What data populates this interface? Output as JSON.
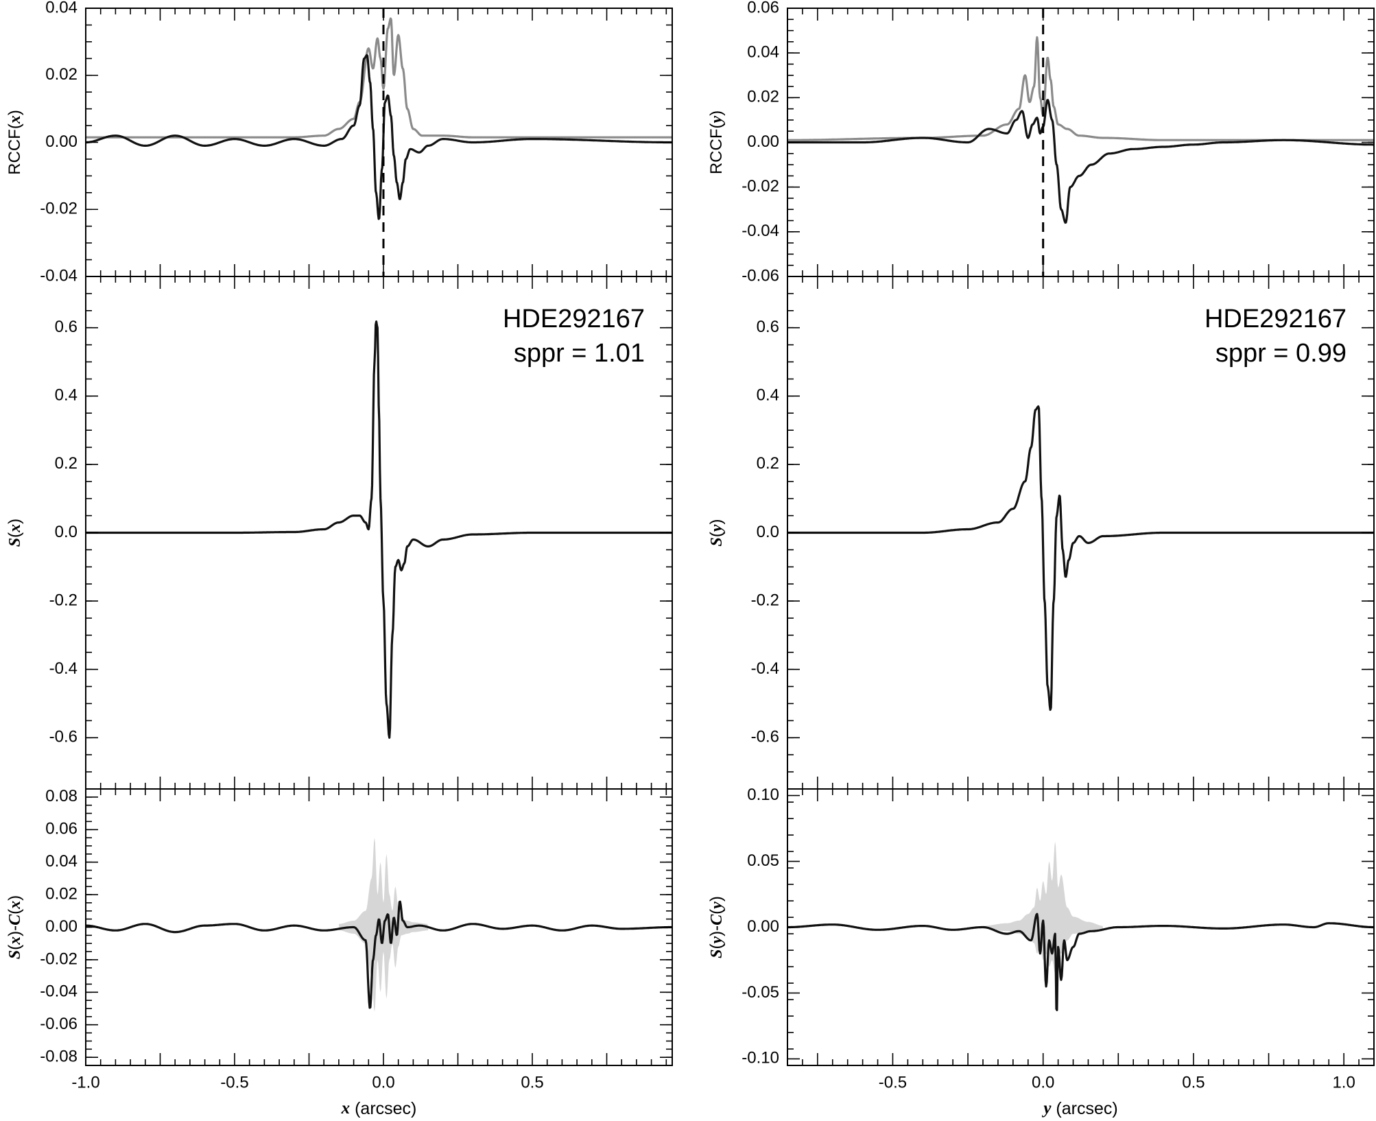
{
  "chart_data": [
    {
      "id": "left-top",
      "type": "line",
      "ylabel": "RCCF(x)",
      "xlim": [
        -1.0,
        0.97
      ],
      "ylim": [
        -0.04,
        0.04
      ],
      "yticks": [
        -0.04,
        -0.02,
        0.0,
        0.02,
        0.04
      ],
      "ytick_labels": [
        "-0.04",
        "-0.02",
        "0.00",
        "0.02",
        "0.04"
      ],
      "vline_x": 0.0,
      "series": [
        {
          "style": "gray",
          "x": [
            -1.0,
            -0.6,
            -0.3,
            -0.2,
            -0.15,
            -0.1,
            -0.08,
            -0.05,
            -0.035,
            -0.02,
            -0.01,
            0.0,
            0.015,
            0.025,
            0.035,
            0.05,
            0.065,
            0.08,
            0.1,
            0.13,
            0.2,
            0.3,
            0.6,
            0.97
          ],
          "y": [
            0.0015,
            0.0015,
            0.0015,
            0.002,
            0.004,
            0.007,
            0.012,
            0.028,
            0.022,
            0.031,
            0.025,
            0.016,
            0.034,
            0.037,
            0.02,
            0.032,
            0.022,
            0.01,
            0.004,
            0.002,
            0.002,
            0.0015,
            0.0015,
            0.0015
          ]
        },
        {
          "style": "black",
          "x": [
            -1.0,
            -0.9,
            -0.8,
            -0.7,
            -0.6,
            -0.5,
            -0.4,
            -0.3,
            -0.2,
            -0.14,
            -0.1,
            -0.08,
            -0.065,
            -0.055,
            -0.045,
            -0.035,
            -0.025,
            -0.015,
            -0.005,
            0.005,
            0.015,
            0.025,
            0.035,
            0.045,
            0.055,
            0.065,
            0.075,
            0.09,
            0.12,
            0.15,
            0.2,
            0.3,
            0.5,
            0.97
          ],
          "y": [
            0.0,
            0.002,
            -0.001,
            0.002,
            -0.001,
            0.001,
            -0.001,
            0.001,
            -0.001,
            0.001,
            0.005,
            0.011,
            0.025,
            0.026,
            0.018,
            0.004,
            -0.015,
            -0.023,
            -0.008,
            0.012,
            0.014,
            0.008,
            -0.004,
            -0.012,
            -0.017,
            -0.012,
            -0.005,
            -0.002,
            -0.003,
            -0.001,
            0.001,
            0.0,
            0.001,
            0.0
          ]
        }
      ]
    },
    {
      "id": "left-mid",
      "type": "line",
      "ylabel": "S(x)",
      "xlim": [
        -1.0,
        0.97
      ],
      "ylim": [
        -0.75,
        0.75
      ],
      "yticks": [
        -0.6,
        -0.4,
        -0.2,
        0.0,
        0.2,
        0.4,
        0.6
      ],
      "ytick_labels": [
        "-0.6",
        "-0.4",
        "-0.2",
        "0.0",
        "0.2",
        "0.4",
        "0.6"
      ],
      "annotation": [
        "HDE292167",
        "sppr = 1.01"
      ],
      "series": [
        {
          "style": "black",
          "x": [
            -1.0,
            -0.5,
            -0.3,
            -0.2,
            -0.15,
            -0.1,
            -0.08,
            -0.06,
            -0.05,
            -0.04,
            -0.03,
            -0.025,
            -0.02,
            -0.015,
            -0.01,
            0.0,
            0.01,
            0.02,
            0.03,
            0.04,
            0.05,
            0.06,
            0.07,
            0.08,
            0.1,
            0.15,
            0.2,
            0.3,
            0.5,
            0.97
          ],
          "y": [
            0.0,
            0.0,
            0.002,
            0.01,
            0.03,
            0.05,
            0.05,
            0.03,
            0.01,
            0.1,
            0.5,
            0.62,
            0.6,
            0.35,
            0.1,
            -0.2,
            -0.5,
            -0.6,
            -0.3,
            -0.1,
            -0.08,
            -0.11,
            -0.09,
            -0.04,
            -0.02,
            -0.04,
            -0.02,
            -0.005,
            0.0,
            0.0
          ]
        }
      ]
    },
    {
      "id": "left-bot",
      "type": "line",
      "ylabel": "S(x)-C(x)",
      "xlabel": "x (arcsec)",
      "xlim": [
        -1.0,
        0.97
      ],
      "ylim": [
        -0.085,
        0.085
      ],
      "yticks": [
        -0.08,
        -0.06,
        -0.04,
        -0.02,
        0.0,
        0.02,
        0.04,
        0.06,
        0.08
      ],
      "ytick_labels": [
        "-0.08",
        "-0.06",
        "-0.04",
        "-0.02",
        "0.00",
        "0.02",
        "0.04",
        "0.06",
        "0.08"
      ],
      "xticks": [
        -1.0,
        -0.5,
        0.0,
        0.5
      ],
      "xtick_labels": [
        "-1.0",
        "-0.5",
        "0.0",
        "0.5"
      ],
      "band": {
        "x": [
          -0.15,
          -0.1,
          -0.06,
          -0.04,
          -0.03,
          -0.02,
          -0.01,
          0.0,
          0.01,
          0.02,
          0.03,
          0.04,
          0.05,
          0.06,
          0.08,
          0.1,
          0.15
        ],
        "upper": [
          0.002,
          0.004,
          0.01,
          0.03,
          0.055,
          0.02,
          0.04,
          0.015,
          0.045,
          0.02,
          0.01,
          0.025,
          0.012,
          0.005,
          0.004,
          0.003,
          0.002
        ],
        "lower": [
          -0.002,
          -0.004,
          -0.01,
          -0.03,
          -0.052,
          -0.02,
          -0.04,
          -0.015,
          -0.044,
          -0.02,
          -0.01,
          -0.025,
          -0.012,
          -0.005,
          -0.004,
          -0.003,
          -0.002
        ]
      },
      "series": [
        {
          "style": "black",
          "x": [
            -1.0,
            -0.9,
            -0.8,
            -0.7,
            -0.6,
            -0.5,
            -0.4,
            -0.3,
            -0.2,
            -0.1,
            -0.06,
            -0.045,
            -0.035,
            -0.025,
            -0.015,
            -0.005,
            0.005,
            0.015,
            0.025,
            0.035,
            0.045,
            0.055,
            0.065,
            0.08,
            0.12,
            0.2,
            0.3,
            0.4,
            0.5,
            0.6,
            0.7,
            0.8,
            0.97
          ],
          "y": [
            0.001,
            -0.002,
            0.002,
            -0.003,
            0.001,
            0.002,
            -0.002,
            0.001,
            -0.002,
            0.0,
            -0.008,
            -0.05,
            -0.02,
            -0.005,
            0.005,
            -0.01,
            0.004,
            0.008,
            -0.01,
            0.006,
            -0.005,
            0.016,
            0.004,
            0.0,
            0.001,
            -0.002,
            0.002,
            -0.001,
            0.001,
            -0.002,
            0.001,
            -0.001,
            0.0
          ]
        }
      ]
    },
    {
      "id": "right-top",
      "type": "line",
      "ylabel": "RCCF(y)",
      "xlim": [
        -0.85,
        1.1
      ],
      "ylim": [
        -0.06,
        0.06
      ],
      "yticks": [
        -0.06,
        -0.04,
        -0.02,
        0.0,
        0.02,
        0.04,
        0.06
      ],
      "ytick_labels": [
        "-0.06",
        "-0.04",
        "-0.02",
        "0.00",
        "0.02",
        "0.04",
        "0.06"
      ],
      "vline_x": 0.0,
      "series": [
        {
          "style": "gray",
          "x": [
            -0.85,
            -0.4,
            -0.2,
            -0.12,
            -0.08,
            -0.06,
            -0.045,
            -0.03,
            -0.02,
            -0.01,
            0.0,
            0.015,
            0.025,
            0.035,
            0.05,
            0.08,
            0.12,
            0.2,
            0.4,
            1.1
          ],
          "y": [
            0.001,
            0.002,
            0.003,
            0.008,
            0.015,
            0.03,
            0.018,
            0.025,
            0.047,
            0.02,
            0.012,
            0.038,
            0.028,
            0.016,
            0.008,
            0.006,
            0.003,
            0.002,
            0.001,
            0.001
          ]
        },
        {
          "style": "black",
          "x": [
            -0.85,
            -0.6,
            -0.4,
            -0.25,
            -0.18,
            -0.12,
            -0.09,
            -0.07,
            -0.05,
            -0.035,
            -0.02,
            -0.01,
            0.0,
            0.015,
            0.03,
            0.045,
            0.06,
            0.075,
            0.09,
            0.12,
            0.16,
            0.22,
            0.3,
            0.4,
            0.5,
            0.6,
            0.8,
            1.1
          ],
          "y": [
            0.0,
            0.0,
            0.002,
            0.0,
            0.006,
            0.004,
            0.01,
            0.014,
            0.002,
            0.008,
            0.011,
            0.004,
            0.007,
            0.019,
            0.01,
            -0.01,
            -0.03,
            -0.036,
            -0.02,
            -0.015,
            -0.01,
            -0.005,
            -0.003,
            -0.002,
            -0.001,
            0.0,
            0.001,
            -0.001
          ]
        }
      ]
    },
    {
      "id": "right-mid",
      "type": "line",
      "ylabel": "S(y)",
      "xlim": [
        -0.85,
        1.1
      ],
      "ylim": [
        -0.75,
        0.75
      ],
      "yticks": [
        -0.6,
        -0.4,
        -0.2,
        0.0,
        0.2,
        0.4,
        0.6
      ],
      "ytick_labels": [
        "-0.6",
        "-0.4",
        "-0.2",
        "0.0",
        "0.2",
        "0.4",
        "0.6"
      ],
      "annotation": [
        "HDE292167",
        "sppr = 0.99"
      ],
      "series": [
        {
          "style": "black",
          "x": [
            -0.85,
            -0.4,
            -0.25,
            -0.15,
            -0.1,
            -0.06,
            -0.04,
            -0.025,
            -0.015,
            -0.005,
            0.005,
            0.015,
            0.025,
            0.035,
            0.045,
            0.055,
            0.065,
            0.075,
            0.085,
            0.1,
            0.12,
            0.15,
            0.2,
            0.4,
            1.1
          ],
          "y": [
            0.0,
            0.0,
            0.01,
            0.03,
            0.07,
            0.15,
            0.25,
            0.36,
            0.37,
            0.1,
            -0.2,
            -0.45,
            -0.52,
            -0.2,
            0.05,
            0.11,
            -0.05,
            -0.13,
            -0.08,
            -0.03,
            -0.01,
            -0.03,
            -0.01,
            0.0,
            0.0
          ]
        }
      ]
    },
    {
      "id": "right-bot",
      "type": "line",
      "ylabel": "S(y)-C(y)",
      "xlabel": "y (arcsec)",
      "xlim": [
        -0.85,
        1.1
      ],
      "ylim": [
        -0.105,
        0.105
      ],
      "yticks": [
        -0.1,
        -0.05,
        0.0,
        0.05,
        0.1
      ],
      "ytick_labels": [
        "-0.10",
        "-0.05",
        "0.00",
        "0.05",
        "0.10"
      ],
      "xticks": [
        -0.5,
        0.0,
        0.5,
        1.0
      ],
      "xtick_labels": [
        "-0.5",
        "0.0",
        "0.5",
        "1.0"
      ],
      "band": {
        "x": [
          -0.2,
          -0.12,
          -0.08,
          -0.05,
          -0.03,
          -0.02,
          -0.01,
          0.0,
          0.01,
          0.02,
          0.03,
          0.04,
          0.05,
          0.06,
          0.08,
          0.1,
          0.15,
          0.2
        ],
        "upper": [
          0.001,
          0.003,
          0.005,
          0.01,
          0.015,
          0.03,
          0.02,
          0.035,
          0.025,
          0.05,
          0.035,
          0.065,
          0.03,
          0.04,
          0.015,
          0.008,
          0.004,
          0.001
        ],
        "lower": [
          -0.001,
          -0.003,
          -0.005,
          -0.008,
          -0.012,
          -0.02,
          -0.015,
          -0.025,
          -0.02,
          -0.03,
          -0.025,
          -0.035,
          -0.02,
          -0.02,
          -0.01,
          -0.005,
          -0.003,
          -0.001
        ]
      },
      "series": [
        {
          "style": "black",
          "x": [
            -0.85,
            -0.7,
            -0.55,
            -0.4,
            -0.3,
            -0.2,
            -0.12,
            -0.08,
            -0.04,
            -0.02,
            -0.01,
            0.0,
            0.01,
            0.02,
            0.03,
            0.04,
            0.045,
            0.05,
            0.06,
            0.07,
            0.08,
            0.1,
            0.12,
            0.16,
            0.25,
            0.4,
            0.6,
            0.8,
            0.9,
            0.95,
            1.1
          ],
          "y": [
            0.0,
            0.002,
            -0.002,
            0.001,
            -0.002,
            0.0,
            -0.005,
            -0.003,
            -0.01,
            0.01,
            -0.02,
            0.005,
            -0.045,
            -0.01,
            -0.02,
            -0.005,
            -0.068,
            -0.015,
            -0.04,
            -0.01,
            -0.025,
            -0.015,
            -0.005,
            -0.003,
            0.0,
            0.001,
            -0.001,
            0.002,
            0.0,
            0.003,
            0.0
          ]
        }
      ]
    }
  ]
}
